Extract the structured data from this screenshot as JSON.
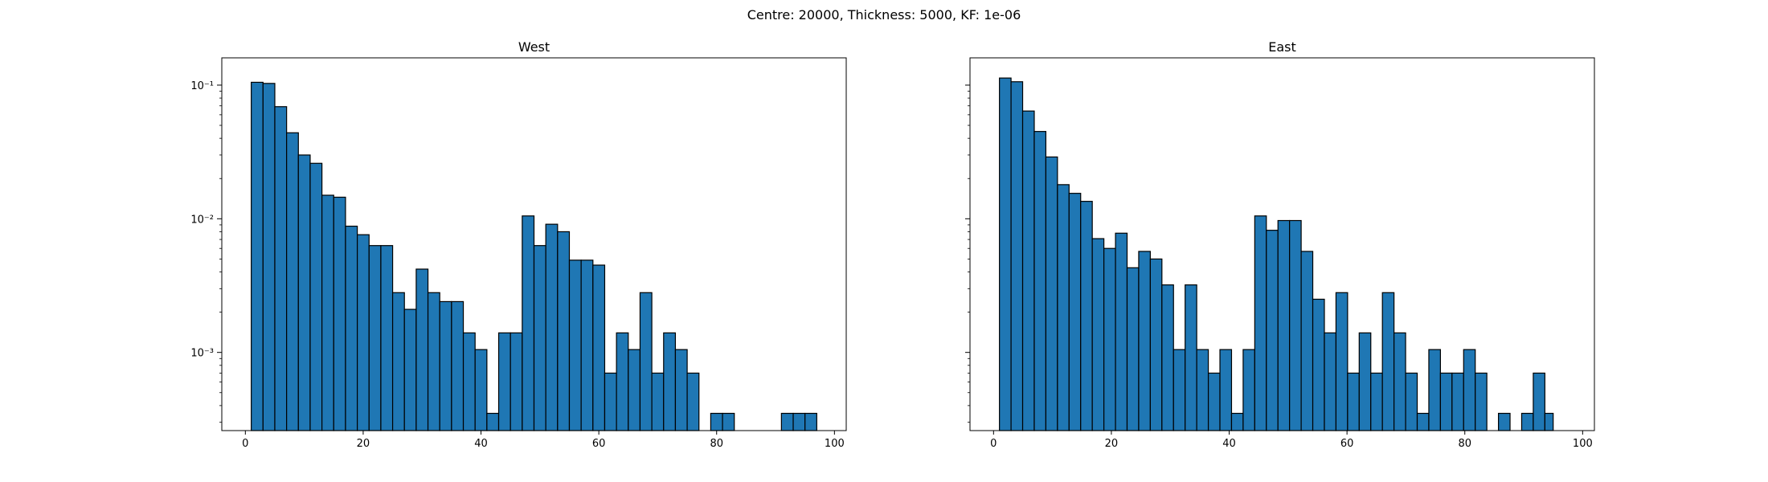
{
  "figure": {
    "suptitle": "Centre: 20000, Thickness: 5000, KF: 1e-06"
  },
  "chart_data": [
    {
      "type": "bar",
      "title": "West",
      "xlabel": "",
      "ylabel": "",
      "y_scale": "log",
      "xlim": [
        -4,
        102
      ],
      "ylim": [
        0.00026,
        0.16
      ],
      "x_ticks": [
        0,
        20,
        40,
        60,
        80,
        100
      ],
      "y_ticks": [
        {
          "value": 0.001,
          "label": "10⁻³"
        },
        {
          "value": 0.01,
          "label": "10⁻²"
        },
        {
          "value": 0.1,
          "label": "10⁻¹"
        }
      ],
      "grid": false,
      "bar_color": "#1f77b4",
      "edge_color": "#000000",
      "bin_edges": [
        1.0,
        3.0,
        5.0,
        7.0,
        9.0,
        11.0,
        13.0,
        15.0,
        17.0,
        19.0,
        21.0,
        23.0,
        25.0,
        27.0,
        29.0,
        31.0,
        33.0,
        35.0,
        37.0,
        39.0,
        41.0,
        43.0,
        45.0,
        47.0,
        49.0,
        51.0,
        53.0,
        55.0,
        57.0,
        59.0,
        61.0,
        63.0,
        65.0,
        67.0,
        69.0,
        71.0,
        73.0,
        75.0,
        77.0,
        79.0,
        81.0,
        83.0,
        85.0,
        87.0,
        89.0,
        91.0,
        93.0,
        95.0,
        97.0
      ],
      "values": [
        0.105,
        0.103,
        0.069,
        0.044,
        0.03,
        0.026,
        0.015,
        0.0145,
        0.0088,
        0.0076,
        0.0063,
        0.0063,
        0.0028,
        0.0021,
        0.0042,
        0.0028,
        0.0024,
        0.0024,
        0.0014,
        0.00105,
        0.00035,
        0.0014,
        0.0014,
        0.0105,
        0.0063,
        0.0091,
        0.008,
        0.0049,
        0.0049,
        0.0045,
        0.0007,
        0.0014,
        0.00105,
        0.0028,
        0.0007,
        0.0014,
        0.00105,
        0.0007,
        0,
        0.00035,
        0.00035,
        0,
        0,
        0,
        0,
        0.00035,
        0.00035,
        0.00035
      ]
    },
    {
      "type": "bar",
      "title": "East",
      "xlabel": "",
      "ylabel": "",
      "y_scale": "log",
      "xlim": [
        -4,
        102
      ],
      "ylim": [
        0.00026,
        0.16
      ],
      "x_ticks": [
        0,
        20,
        40,
        60,
        80,
        100
      ],
      "y_ticks": [],
      "grid": false,
      "bar_color": "#1f77b4",
      "edge_color": "#000000",
      "bin_edges": [
        1.0,
        2.97,
        4.94,
        6.91,
        8.88,
        10.85,
        12.82,
        14.79,
        16.76,
        18.73,
        20.7,
        22.67,
        24.64,
        26.61,
        28.58,
        30.55,
        32.52,
        34.49,
        36.46,
        38.43,
        40.4,
        42.37,
        44.34,
        46.31,
        48.28,
        50.25,
        52.22,
        54.19,
        56.16,
        58.13,
        60.1,
        62.07,
        64.04,
        66.01,
        67.98,
        69.95,
        71.92,
        73.89,
        75.86,
        77.83,
        79.8,
        81.77,
        83.74,
        85.71,
        87.68,
        89.65,
        91.62,
        93.59,
        95.0
      ],
      "values": [
        0.113,
        0.106,
        0.064,
        0.045,
        0.029,
        0.018,
        0.0155,
        0.0135,
        0.0071,
        0.006,
        0.0078,
        0.0043,
        0.0057,
        0.005,
        0.0032,
        0.00105,
        0.0032,
        0.00105,
        0.0007,
        0.00105,
        0.00035,
        0.00105,
        0.0105,
        0.0082,
        0.0097,
        0.0097,
        0.0057,
        0.0025,
        0.0014,
        0.0028,
        0.0007,
        0.0014,
        0.0007,
        0.0028,
        0.0014,
        0.0007,
        0.00035,
        0.00105,
        0.0007,
        0.0007,
        0.00105,
        0.0007,
        0,
        0.00035,
        0,
        0.00035,
        0.0007,
        0.00035
      ]
    }
  ]
}
